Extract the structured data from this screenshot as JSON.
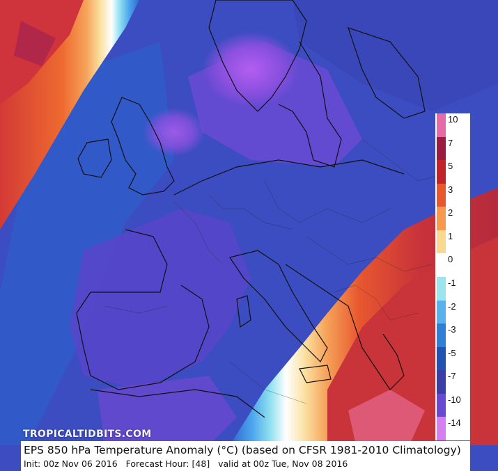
{
  "title": "EPS 850 hPa Temperature Anomaly (°C) (based on CFSR 1981-2010 Climatology)",
  "init_line": {
    "init": "Init: 00z Nov 06 2016",
    "forecast_hour": "Forecast Hour: [48]",
    "valid": "valid at 00z Tue, Nov 08 2016"
  },
  "watermark": "TROPICALTIDBITS.COM",
  "legend": {
    "labels": [
      "10",
      "7",
      "5",
      "3",
      "2",
      "1",
      "0",
      "-1",
      "-2",
      "-3",
      "-5",
      "-7",
      "-10",
      "-14"
    ],
    "colors": [
      "#e56aa8",
      "#9a1c3f",
      "#c2232b",
      "#e8582f",
      "#f79a4f",
      "#fbd890",
      "#ffffff",
      "#9ce4ee",
      "#58b2ee",
      "#2f7fd6",
      "#2452b2",
      "#3a3ea6",
      "#6b48d2",
      "#d67ff0"
    ]
  },
  "colors": {
    "sea_cold": "#3d4ec1",
    "land_cold": "#5547c8",
    "very_cold": "#8e4fe0",
    "warm_red": "#c9333a",
    "warm_orange": "#e9692f",
    "coast": "#111111"
  }
}
